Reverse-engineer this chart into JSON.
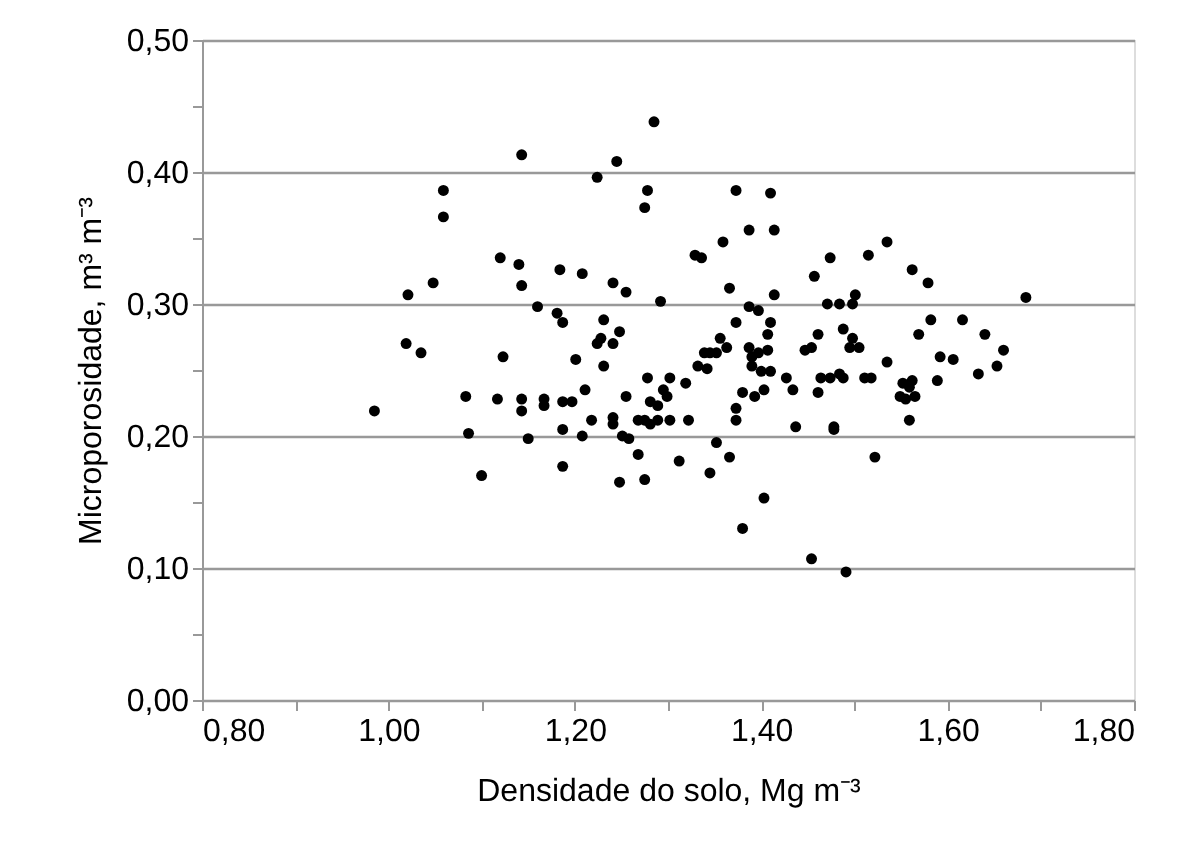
{
  "chart_data": {
    "type": "scatter",
    "xlabel": "Densidade do solo, Mg m⁻³",
    "ylabel": "Microporosidade, m³ m⁻³",
    "xlim": [
      0.8,
      1.8
    ],
    "ylim": [
      0,
      0.5
    ],
    "xticks": [
      {
        "value": 0.8,
        "label": "0,80"
      },
      {
        "value": 0.9,
        "label": null
      },
      {
        "value": 1.0,
        "label": "1,00"
      },
      {
        "value": 1.1,
        "label": null
      },
      {
        "value": 1.2,
        "label": "1,20"
      },
      {
        "value": 1.3,
        "label": null
      },
      {
        "value": 1.4,
        "label": "1,40"
      },
      {
        "value": 1.5,
        "label": null
      },
      {
        "value": 1.6,
        "label": "1,60"
      },
      {
        "value": 1.7,
        "label": null
      },
      {
        "value": 1.8,
        "label": "1,80"
      }
    ],
    "yticks": [
      {
        "value": 0,
        "label": "0,00"
      },
      {
        "value": 0.05,
        "label": null
      },
      {
        "value": 0.1,
        "label": "0,10"
      },
      {
        "value": 0.15,
        "label": null
      },
      {
        "value": 0.2,
        "label": "0,20"
      },
      {
        "value": 0.25,
        "label": null
      },
      {
        "value": 0.3,
        "label": "0,30"
      },
      {
        "value": 0.35,
        "label": null
      },
      {
        "value": 0.4,
        "label": "0,40"
      },
      {
        "value": 0.45,
        "label": null
      },
      {
        "value": 0.5,
        "label": "0,50"
      }
    ],
    "grid": "y",
    "legend": false,
    "marker": "circle",
    "series": [
      {
        "color": "#000000",
        "x": [
          0.985,
          1.021,
          1.019,
          1.035,
          1.048,
          1.059,
          1.059,
          1.083,
          1.086,
          1.1,
          1.12,
          1.123,
          1.117,
          1.14,
          1.143,
          1.143,
          1.143,
          1.143,
          1.15,
          1.16,
          1.167,
          1.167,
          1.184,
          1.181,
          1.187,
          1.187,
          1.197,
          1.187,
          1.187,
          1.201,
          1.208,
          1.211,
          1.208,
          1.218,
          1.224,
          1.224,
          1.228,
          1.231,
          1.231,
          1.241,
          1.241,
          1.241,
          1.241,
          1.245,
          1.248,
          1.248,
          1.251,
          1.255,
          1.255,
          1.258,
          1.268,
          1.268,
          1.275,
          1.275,
          1.275,
          1.278,
          1.278,
          1.281,
          1.281,
          1.285,
          1.289,
          1.289,
          1.292,
          1.295,
          1.299,
          1.302,
          1.302,
          1.312,
          1.319,
          1.322,
          1.329,
          1.336,
          1.332,
          1.339,
          1.342,
          1.345,
          1.345,
          1.352,
          1.352,
          1.356,
          1.359,
          1.363,
          1.366,
          1.366,
          1.373,
          1.373,
          1.373,
          1.373,
          1.38,
          1.38,
          1.387,
          1.387,
          1.387,
          1.39,
          1.39,
          1.393,
          1.397,
          1.397,
          1.4,
          1.403,
          1.403,
          1.407,
          1.407,
          1.41,
          1.41,
          1.41,
          1.414,
          1.414,
          1.427,
          1.434,
          1.437,
          1.447,
          1.454,
          1.454,
          1.457,
          1.461,
          1.461,
          1.464,
          1.471,
          1.474,
          1.474,
          1.478,
          1.478,
          1.484,
          1.484,
          1.488,
          1.488,
          1.491,
          1.495,
          1.498,
          1.498,
          1.501,
          1.505,
          1.511,
          1.518,
          1.515,
          1.522,
          1.535,
          1.535,
          1.549,
          1.552,
          1.555,
          1.559,
          1.559,
          1.562,
          1.562,
          1.565,
          1.569,
          1.579,
          1.582,
          1.589,
          1.592,
          1.606,
          1.616,
          1.633,
          1.64,
          1.653,
          1.66,
          1.684
        ],
        "values": [
          0.219,
          0.307,
          0.27,
          0.263,
          0.316,
          0.386,
          0.366,
          0.23,
          0.202,
          0.17,
          0.335,
          0.26,
          0.228,
          0.33,
          0.413,
          0.314,
          0.228,
          0.219,
          0.198,
          0.298,
          0.228,
          0.223,
          0.326,
          0.293,
          0.286,
          0.226,
          0.226,
          0.205,
          0.177,
          0.258,
          0.323,
          0.235,
          0.2,
          0.212,
          0.396,
          0.27,
          0.274,
          0.288,
          0.253,
          0.316,
          0.27,
          0.214,
          0.209,
          0.408,
          0.279,
          0.165,
          0.2,
          0.309,
          0.23,
          0.198,
          0.186,
          0.212,
          0.212,
          0.167,
          0.373,
          0.386,
          0.244,
          0.226,
          0.209,
          0.438,
          0.223,
          0.212,
          0.302,
          0.235,
          0.23,
          0.244,
          0.212,
          0.181,
          0.24,
          0.212,
          0.337,
          0.335,
          0.253,
          0.263,
          0.251,
          0.263,
          0.172,
          0.263,
          0.195,
          0.274,
          0.347,
          0.267,
          0.312,
          0.184,
          0.386,
          0.286,
          0.221,
          0.212,
          0.13,
          0.233,
          0.356,
          0.298,
          0.267,
          0.26,
          0.253,
          0.23,
          0.295,
          0.263,
          0.249,
          0.235,
          0.153,
          0.277,
          0.265,
          0.384,
          0.286,
          0.249,
          0.356,
          0.307,
          0.244,
          0.235,
          0.207,
          0.265,
          0.267,
          0.107,
          0.321,
          0.277,
          0.233,
          0.244,
          0.3,
          0.335,
          0.244,
          0.207,
          0.205,
          0.3,
          0.247,
          0.281,
          0.244,
          0.097,
          0.267,
          0.3,
          0.274,
          0.307,
          0.267,
          0.244,
          0.244,
          0.337,
          0.184,
          0.347,
          0.256,
          0.23,
          0.24,
          0.228,
          0.212,
          0.237,
          0.326,
          0.242,
          0.23,
          0.277,
          0.316,
          0.288,
          0.242,
          0.26,
          0.258,
          0.288,
          0.247,
          0.277,
          0.253,
          0.265,
          0.305
        ]
      }
    ]
  }
}
